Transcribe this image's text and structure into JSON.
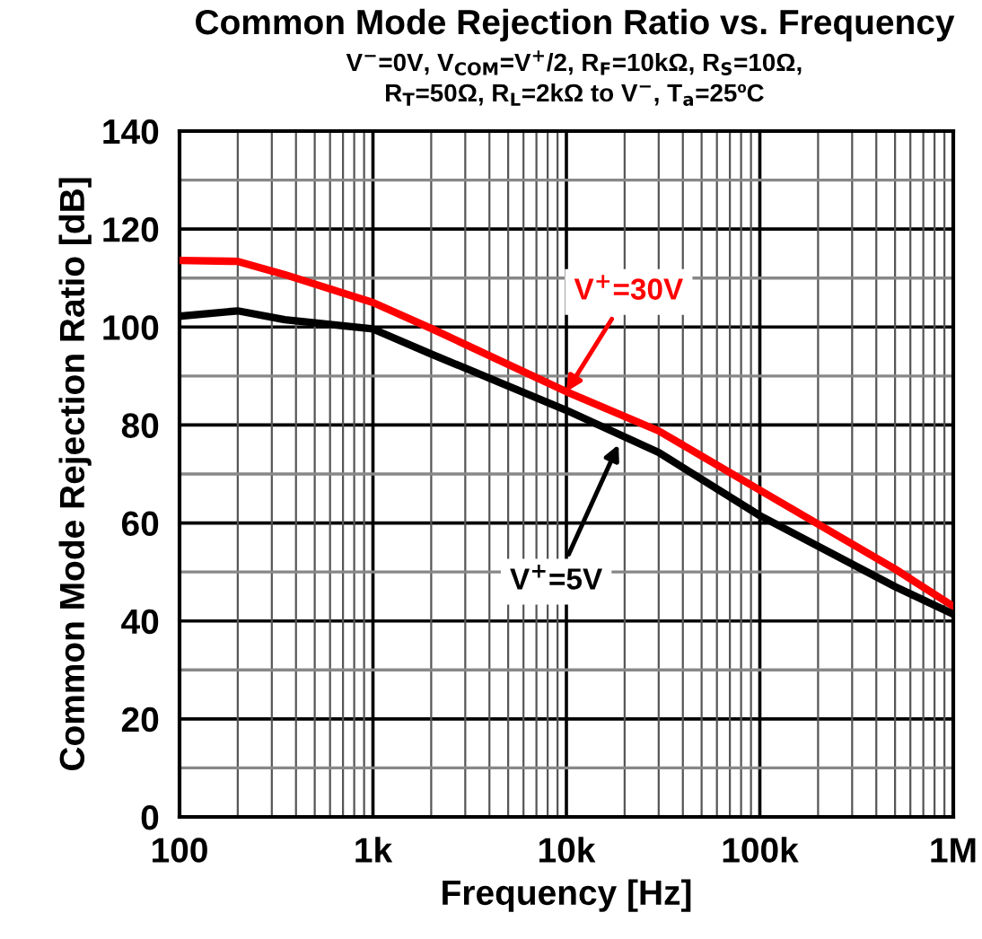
{
  "chart_data": {
    "type": "line",
    "title": "Common Mode Rejection Ratio vs. Frequency",
    "subtitle": "V$^{−}$=0V, V$_{COM}$=V$^{+}$/2, R$_{F}$=10kΩ, R$_{S}$=10Ω,\nR$_{T}$=50Ω, R$_{L}$=2kΩ to V$^{−}$, T$_{a}$=25ºC",
    "xlabel": "Frequency [Hz]",
    "ylabel": "Common Mode Rejection Ratio [dB]",
    "x": [
      100,
      200,
      350,
      1000,
      2000,
      10000,
      30000,
      100000,
      500000,
      1000000
    ],
    "series": [
      {
        "color": "#ff0000",
        "values": [
          113.6,
          113.4,
          110.7,
          105,
          99.7,
          86.8,
          78.8,
          66.7,
          50.6,
          43
        ]
      },
      {
        "color": "#000000",
        "values": [
          102.2,
          103.3,
          101.5,
          99.6,
          94.5,
          83,
          74.4,
          61.5,
          47,
          41.4
        ]
      }
    ],
    "annotations": [
      {
        "text": "V$^{+}$=30V",
        "x": 10000,
        "y": 86.8
      },
      {
        "text": "V$^{+}$=5V",
        "x": 18600,
        "y": 76
      }
    ],
    "log": "x",
    "xlim": [
      100,
      1000000
    ],
    "ylim": [
      0,
      140
    ],
    "xticks": [
      100,
      {
        "value": 1000,
        "label": "1k"
      },
      {
        "value": 10000,
        "label": "10k"
      },
      {
        "value": 100000,
        "label": "100k"
      },
      {
        "value": 1000000,
        "label": "1M"
      }
    ],
    "yticks": [
      0,
      20,
      40,
      60,
      80,
      100,
      120,
      140
    ],
    "grid": true,
    "legend": false
  }
}
